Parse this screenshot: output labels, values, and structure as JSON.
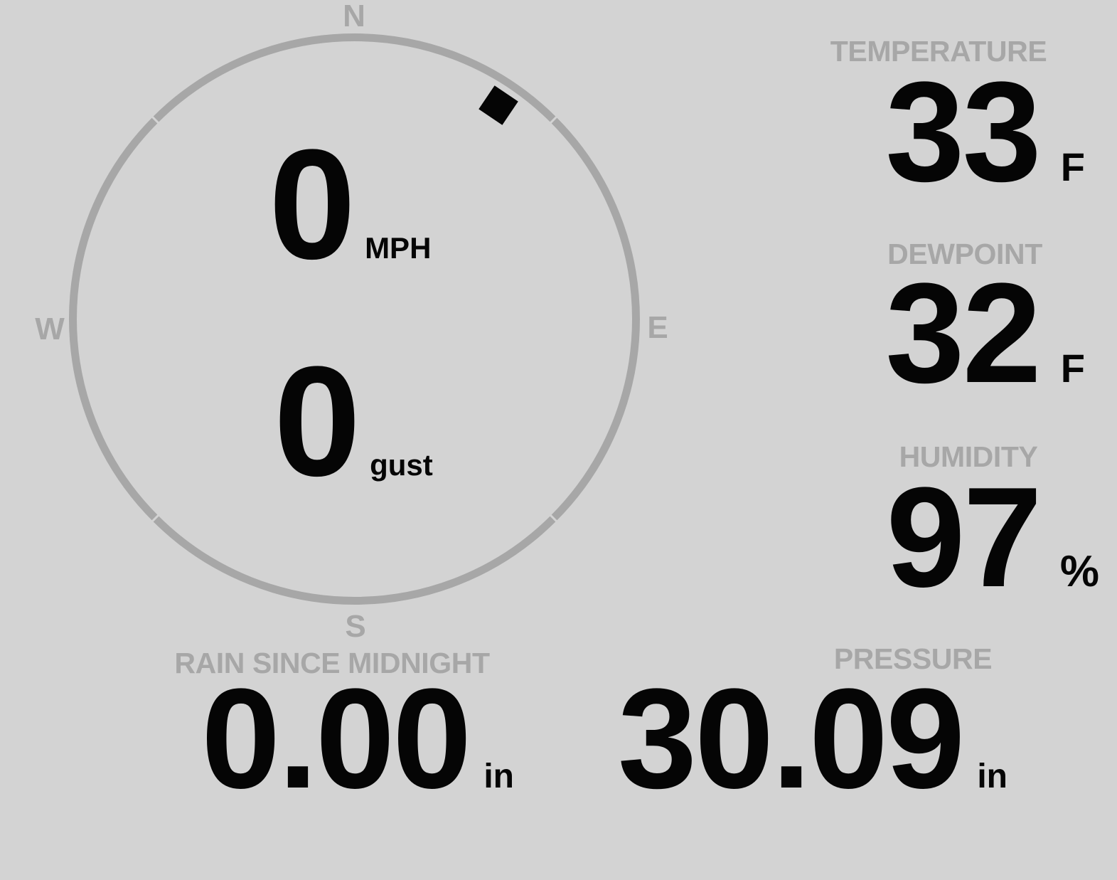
{
  "theme": {
    "background": "#d3d3d3",
    "muted": "#a7a7a7",
    "text": "#050505"
  },
  "wind": {
    "compass": {
      "north_label": "N",
      "east_label": "E",
      "south_label": "S",
      "west_label": "W",
      "direction_deg": 34
    },
    "speed": {
      "value": "0",
      "unit": "MPH"
    },
    "gust": {
      "value": "0",
      "unit": "gust"
    }
  },
  "metrics": {
    "temperature": {
      "label": "TEMPERATURE",
      "value": "33",
      "unit": "F"
    },
    "dewpoint": {
      "label": "DEWPOINT",
      "value": "32",
      "unit": "F"
    },
    "humidity": {
      "label": "HUMIDITY",
      "value": "97",
      "unit": "%"
    },
    "rain_since_midnight": {
      "label": "RAIN SINCE MIDNIGHT",
      "value": "0.00",
      "unit": "in"
    },
    "pressure": {
      "label": "PRESSURE",
      "value": "30.09",
      "unit": "in"
    }
  }
}
